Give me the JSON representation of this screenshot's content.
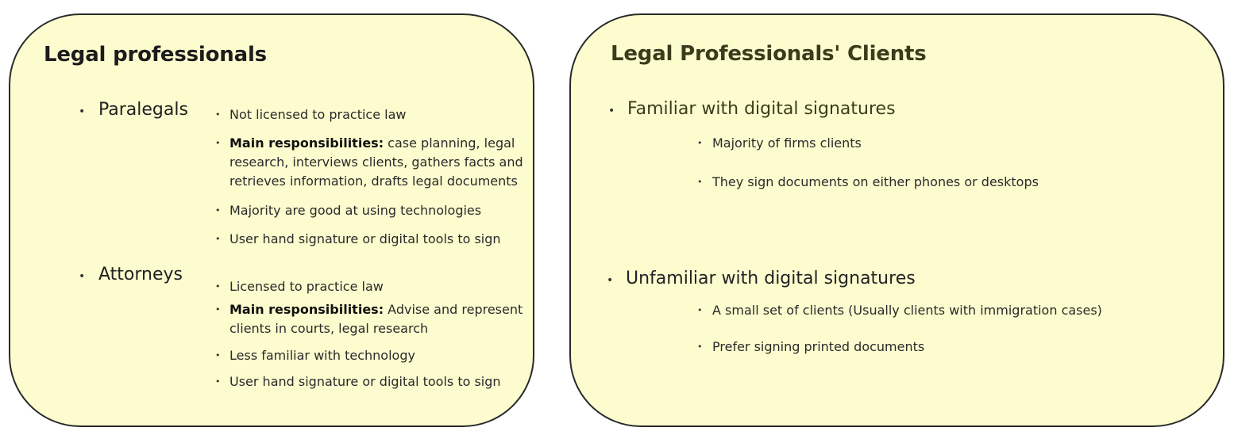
{
  "left_card": {
    "title": "Legal professionals",
    "groups": [
      {
        "heading": "Paralegals",
        "items": [
          {
            "bold": "",
            "text": "Not licensed to practice law"
          },
          {
            "bold": "Main responsibilities:",
            "text": " case planning, legal research, interviews clients, gathers  facts and retrieves information, drafts legal documents"
          },
          {
            "bold": "",
            "text": "Majority are good at using technologies"
          },
          {
            "bold": "",
            "text": "User hand signature or digital tools to sign"
          }
        ]
      },
      {
        "heading": "Attorneys",
        "items": [
          {
            "bold": "",
            "text": "Licensed to practice law"
          },
          {
            "bold": "Main responsibilities:",
            "text": " Advise and represent clients in courts, legal research"
          },
          {
            "bold": "",
            "text": "Less familiar with technology"
          },
          {
            "bold": "",
            "text": "User hand signature or digital tools to sign"
          }
        ]
      }
    ]
  },
  "right_card": {
    "title": "Legal Professionals' Clients",
    "groups": [
      {
        "heading": "Familiar with digital signatures",
        "items": [
          {
            "text": "Majority of firms clients"
          },
          {
            "text": "They sign documents on either phones or desktops"
          }
        ]
      },
      {
        "heading": "Unfamiliar with digital signatures",
        "items": [
          {
            "text": "A small set of clients (Usually clients with immigration cases)"
          },
          {
            "text": "Prefer signing printed documents"
          }
        ]
      }
    ]
  },
  "colors": {
    "card_fill": "#fdfccf",
    "card_border": "#2a2a2a",
    "right_title": "#3b3c1c"
  }
}
